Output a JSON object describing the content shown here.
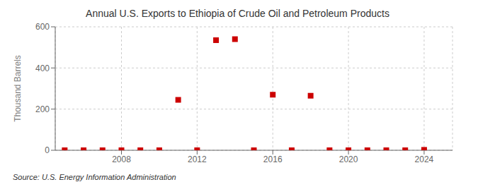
{
  "chart_data": {
    "type": "scatter",
    "title": "Annual U.S. Exports to Ethiopia of Crude Oil and Petroleum Products",
    "y_label": "Thousand Barrels",
    "source": "Source: U.S. Energy Information Administration",
    "x": [
      2005,
      2006,
      2007,
      2008,
      2009,
      2010,
      2011,
      2012,
      2013,
      2014,
      2015,
      2016,
      2017,
      2018,
      2019,
      2020,
      2021,
      2022,
      2023,
      2024
    ],
    "values": [
      0,
      0,
      0,
      0,
      0,
      0,
      245,
      0,
      535,
      540,
      0,
      270,
      0,
      265,
      0,
      0,
      0,
      0,
      0,
      2
    ],
    "color": "#cc0000",
    "marker": "square",
    "xlim": [
      2004.5,
      2025.5
    ],
    "ylim": [
      0,
      600
    ],
    "xticks": [
      2008,
      2012,
      2016,
      2020,
      2024
    ],
    "yticks": [
      0,
      200,
      400,
      600
    ],
    "grid": true
  }
}
